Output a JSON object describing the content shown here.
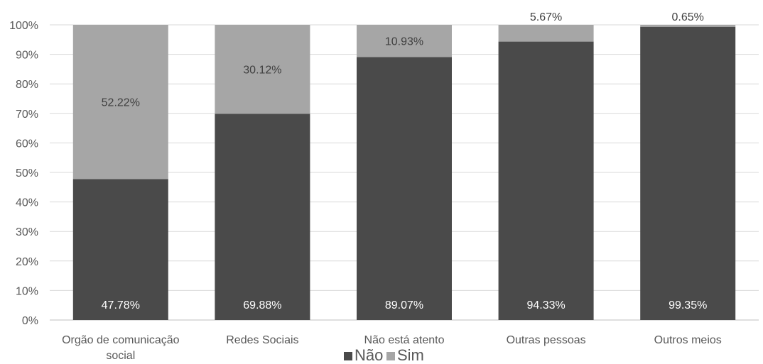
{
  "chart_data": {
    "type": "bar",
    "stacked": true,
    "percent_stacked": true,
    "categories": [
      [
        "Orgão de comunicação",
        "social"
      ],
      [
        "Redes Sociais"
      ],
      [
        "Não está atento"
      ],
      [
        "Outras pessoas"
      ],
      [
        "Outros meios"
      ]
    ],
    "series": [
      {
        "name": "Não",
        "values": [
          47.78,
          69.88,
          89.07,
          94.33,
          99.35
        ],
        "labels": [
          "47.78%",
          "69.88%",
          "89.07%",
          "94.33%",
          "99.35%"
        ],
        "color": "#4a4a4a",
        "label_color": "#ffffff"
      },
      {
        "name": "Sim",
        "values": [
          52.22,
          30.12,
          10.93,
          5.67,
          0.65
        ],
        "labels": [
          "52.22%",
          "30.12%",
          "10.93%",
          "5.67%",
          "0.65%"
        ],
        "color": "#a6a6a6",
        "label_color": "#404040"
      }
    ],
    "ylim": [
      0,
      100
    ],
    "yticks": [
      "0%",
      "10%",
      "20%",
      "30%",
      "40%",
      "50%",
      "60%",
      "70%",
      "80%",
      "90%",
      "100%"
    ],
    "grid": true,
    "legend_position": "bottom"
  }
}
